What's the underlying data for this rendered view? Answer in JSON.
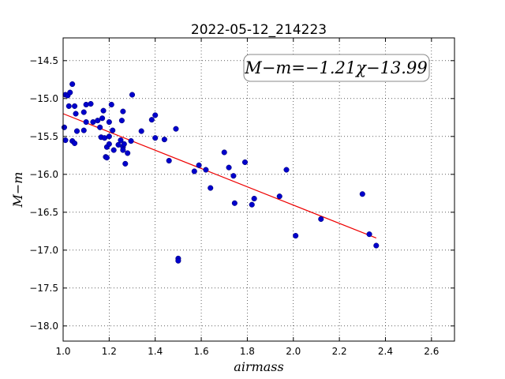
{
  "chart_data": {
    "type": "scatter",
    "title": "2022-05-12_214223",
    "xlabel": "airmass",
    "ylabel": "M−m",
    "xlim": [
      1.0,
      2.7
    ],
    "ylim": [
      -18.2,
      -14.2
    ],
    "y_inverted": true,
    "x_ticks": [
      1.0,
      1.2,
      1.4,
      1.6,
      1.8,
      2.0,
      2.2,
      2.4,
      2.6
    ],
    "x_tick_labels": [
      "1.0",
      "1.2",
      "1.4",
      "1.6",
      "1.8",
      "2.0",
      "2.2",
      "2.4",
      "2.6"
    ],
    "y_ticks": [
      -14.5,
      -15.0,
      -15.5,
      -16.0,
      -16.5,
      -17.0,
      -17.5,
      -18.0
    ],
    "y_tick_labels": [
      "−14.5",
      "−15.0",
      "−15.5",
      "−16.0",
      "−16.5",
      "−17.0",
      "−17.5",
      "−18.0"
    ],
    "grid": true,
    "annotation": "M−m=−1.21χ−13.99",
    "colors": {
      "points": "#0000cc",
      "fit": "#ee0000"
    },
    "fit_line": {
      "x": [
        1.0,
        2.36
      ],
      "y": [
        -15.2,
        -16.84
      ]
    },
    "points": [
      [
        1.005,
        -15.38
      ],
      [
        1.01,
        -15.55
      ],
      [
        1.01,
        -14.95
      ],
      [
        1.02,
        -14.96
      ],
      [
        1.025,
        -15.1
      ],
      [
        1.03,
        -14.92
      ],
      [
        1.04,
        -15.56
      ],
      [
        1.04,
        -14.81
      ],
      [
        1.05,
        -15.59
      ],
      [
        1.05,
        -15.1
      ],
      [
        1.055,
        -15.2
      ],
      [
        1.06,
        -15.43
      ],
      [
        1.09,
        -15.18
      ],
      [
        1.09,
        -15.42
      ],
      [
        1.1,
        -15.08
      ],
      [
        1.1,
        -15.31
      ],
      [
        1.12,
        -15.07
      ],
      [
        1.13,
        -15.31
      ],
      [
        1.15,
        -15.29
      ],
      [
        1.16,
        -15.38
      ],
      [
        1.165,
        -15.51
      ],
      [
        1.17,
        -15.26
      ],
      [
        1.175,
        -15.16
      ],
      [
        1.18,
        -15.52
      ],
      [
        1.185,
        -15.77
      ],
      [
        1.19,
        -15.64
      ],
      [
        1.19,
        -15.78
      ],
      [
        1.2,
        -15.31
      ],
      [
        1.2,
        -15.5
      ],
      [
        1.2,
        -15.6
      ],
      [
        1.21,
        -15.08
      ],
      [
        1.215,
        -15.42
      ],
      [
        1.22,
        -15.68
      ],
      [
        1.24,
        -15.61
      ],
      [
        1.25,
        -15.55
      ],
      [
        1.255,
        -15.29
      ],
      [
        1.26,
        -15.17
      ],
      [
        1.26,
        -15.64
      ],
      [
        1.26,
        -15.68
      ],
      [
        1.265,
        -15.6
      ],
      [
        1.27,
        -15.86
      ],
      [
        1.28,
        -15.72
      ],
      [
        1.295,
        -15.56
      ],
      [
        1.3,
        -14.95
      ],
      [
        1.34,
        -15.43
      ],
      [
        1.385,
        -15.28
      ],
      [
        1.4,
        -15.22
      ],
      [
        1.4,
        -15.52
      ],
      [
        1.44,
        -15.54
      ],
      [
        1.46,
        -15.82
      ],
      [
        1.49,
        -15.4
      ],
      [
        1.5,
        -17.11
      ],
      [
        1.5,
        -17.14
      ],
      [
        1.57,
        -15.96
      ],
      [
        1.59,
        -15.88
      ],
      [
        1.62,
        -15.94
      ],
      [
        1.64,
        -16.18
      ],
      [
        1.7,
        -15.71
      ],
      [
        1.72,
        -15.91
      ],
      [
        1.74,
        -16.02
      ],
      [
        1.745,
        -16.38
      ],
      [
        1.79,
        -15.84
      ],
      [
        1.82,
        -16.4
      ],
      [
        1.83,
        -16.32
      ],
      [
        1.94,
        -16.29
      ],
      [
        1.97,
        -15.94
      ],
      [
        2.01,
        -16.81
      ],
      [
        2.12,
        -16.59
      ],
      [
        2.3,
        -16.26
      ],
      [
        2.33,
        -16.79
      ],
      [
        2.36,
        -16.94
      ]
    ]
  }
}
